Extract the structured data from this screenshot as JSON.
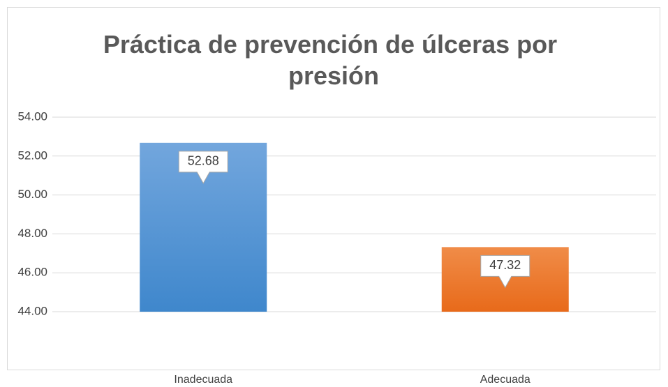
{
  "chart_data": {
    "type": "bar",
    "title": "Práctica de prevención de úlceras por presión",
    "categories": [
      "Inadecuada",
      "Adecuada"
    ],
    "series": [
      {
        "values": [
          52.68,
          47.32
        ],
        "colors": [
          "#5b9bd5",
          "#ed7d31"
        ]
      }
    ],
    "ylim": [
      44,
      54
    ],
    "yticks": [
      {
        "value": 44,
        "label": "44.00"
      },
      {
        "value": 46,
        "label": "46.00"
      },
      {
        "value": 48,
        "label": "48.00"
      },
      {
        "value": 50,
        "label": "50.00"
      },
      {
        "value": 52,
        "label": "52.00"
      },
      {
        "value": 54,
        "label": "54.00"
      }
    ],
    "grid": true
  }
}
